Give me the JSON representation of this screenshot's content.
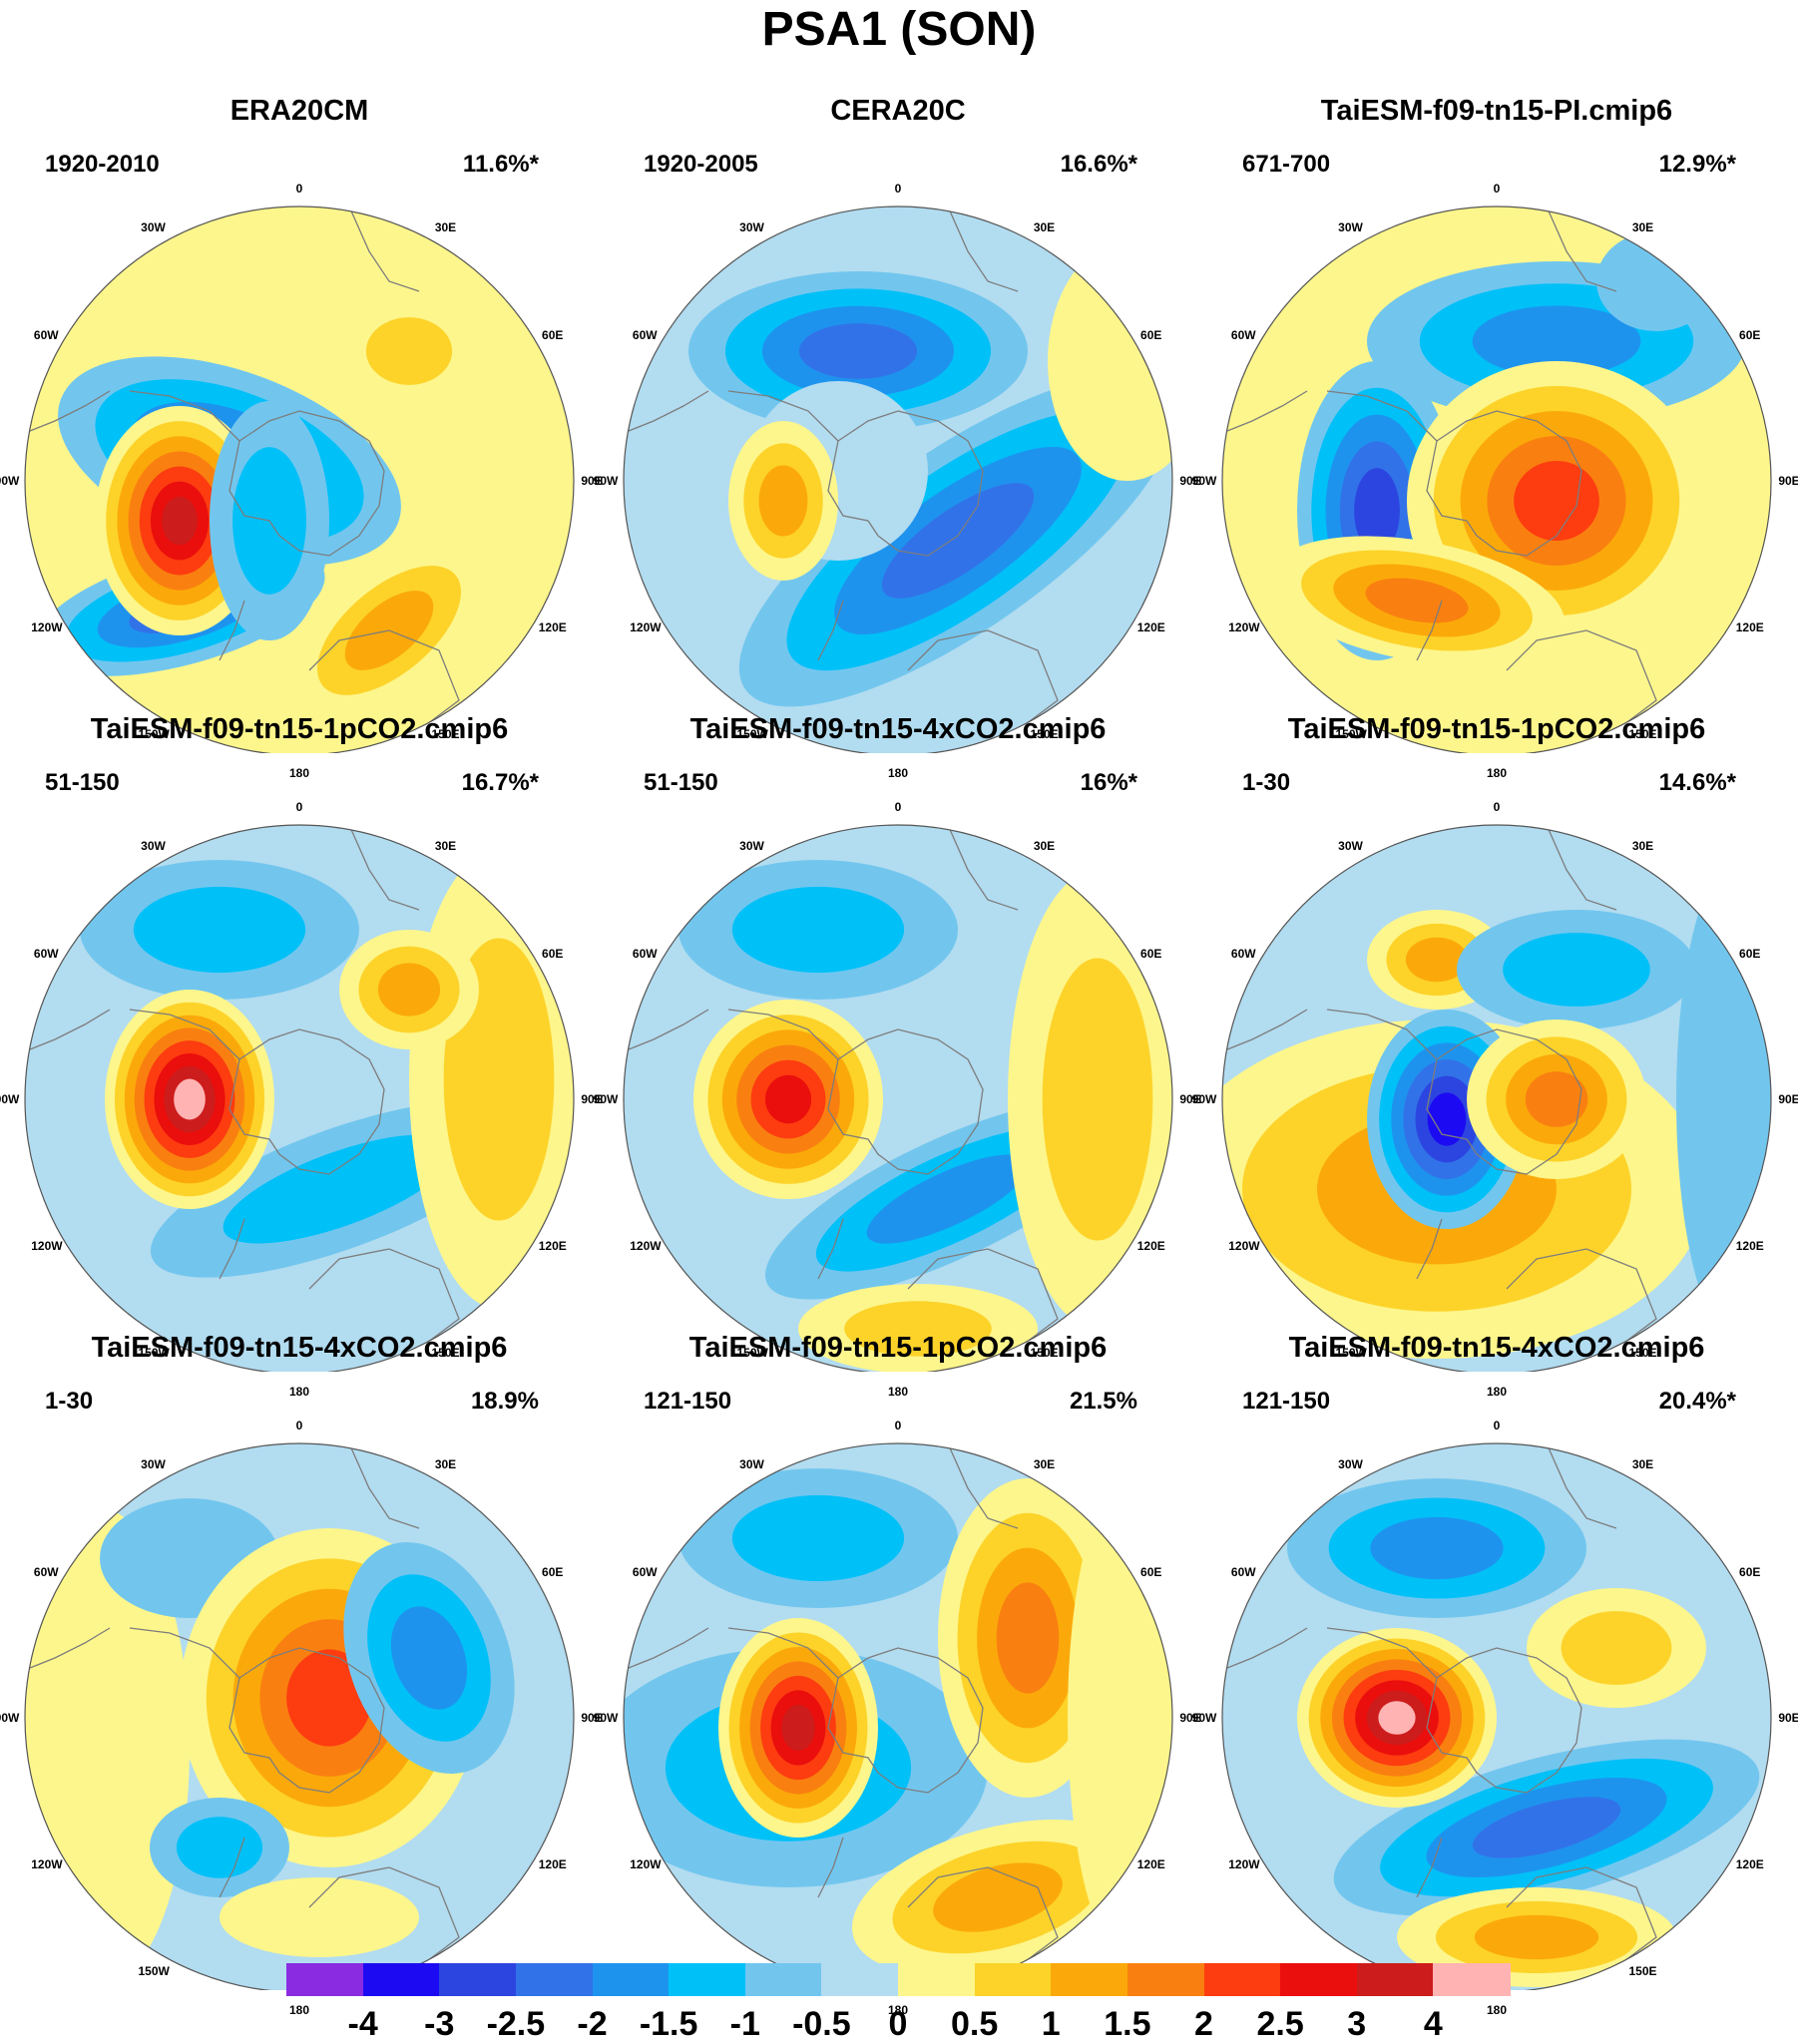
{
  "title": "PSA1 (SON)",
  "lon_labels": [
    "0",
    "30E",
    "60E",
    "90E",
    "120E",
    "150E",
    "180",
    "150W",
    "120W",
    "90W",
    "60W",
    "30W"
  ],
  "colors": {
    "land_outline": "#7d7d7d",
    "circle_outline": "#555555"
  },
  "colorbar": {
    "colors": [
      "#8a2be2",
      "#1c0bf2",
      "#2c45e0",
      "#3272e8",
      "#1e93ee",
      "#00c0f8",
      "#72c6ee",
      "#b2dcf0",
      "#fdf68c",
      "#fdd32a",
      "#fba90a",
      "#f98010",
      "#fd3c10",
      "#ea0e0c",
      "#cd1c1c",
      "#ffb3b3"
    ],
    "labels": [
      "-4",
      "-3",
      "-2.5",
      "-2",
      "-1.5",
      "-1",
      "-0.5",
      "0",
      "0.5",
      "1",
      "1.5",
      "2",
      "2.5",
      "3",
      "4"
    ]
  },
  "panels": [
    {
      "title": "ERA20CM",
      "period": "1920-2010",
      "pct": "11.6%*"
    },
    {
      "title": "CERA20C",
      "period": "1920-2005",
      "pct": "16.6%*"
    },
    {
      "title": "TaiESM-f09-tn15-PI.cmip6",
      "period": "671-700",
      "pct": "12.9%*"
    },
    {
      "title": "TaiESM-f09-tn15-1pCO2.cmip6",
      "period": "51-150",
      "pct": "16.7%*"
    },
    {
      "title": "TaiESM-f09-tn15-4xCO2.cmip6",
      "period": "51-150",
      "pct": "16%*"
    },
    {
      "title": "TaiESM-f09-tn15-1pCO2.cmip6",
      "period": "1-30",
      "pct": "14.6%*"
    },
    {
      "title": "TaiESM-f09-tn15-4xCO2.cmip6",
      "period": "1-30",
      "pct": "18.9%"
    },
    {
      "title": "TaiESM-f09-tn15-1pCO2.cmip6",
      "period": "121-150",
      "pct": "21.5%"
    },
    {
      "title": "TaiESM-f09-tn15-4xCO2.cmip6",
      "period": "121-150",
      "pct": "20.4%*"
    }
  ]
}
